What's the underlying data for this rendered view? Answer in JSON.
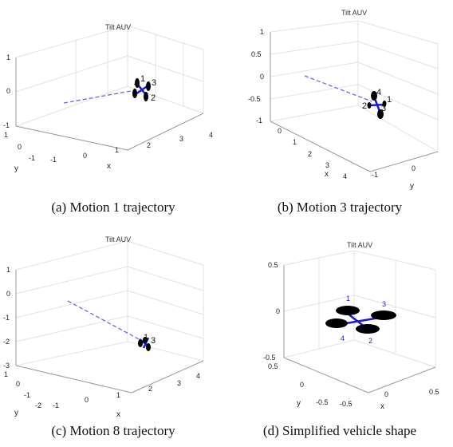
{
  "colors": {
    "arm": "#1a1adb",
    "rotor": "#000000",
    "trajectory": "#6b6bd8",
    "grid": "#e2e2e2",
    "axis": "#9a9a9a"
  },
  "chart_data": [
    {
      "type": "line3d",
      "title": "Tilt AUV",
      "caption": "(a) Motion 1 trajectory",
      "xlabel": "x",
      "ylabel": "y",
      "zlabel": "",
      "xticks": [
        "-1",
        "0",
        "1",
        "2",
        "3",
        "4"
      ],
      "yticks": [
        "-1",
        "0",
        "1"
      ],
      "zticks": [
        "-1",
        "0",
        "1"
      ],
      "rotor_labels": [
        "1",
        "2",
        "3",
        "4"
      ],
      "trajectory": {
        "x": [
          -1,
          2.2
        ],
        "y": [
          0,
          0
        ],
        "z": [
          0,
          0
        ]
      }
    },
    {
      "type": "line3d",
      "title": "Tilt AUV",
      "caption": "(b) Motion 3 trajectory",
      "xlabel": "x",
      "ylabel": "y",
      "zlabel": "",
      "xticks": [
        "0",
        "1",
        "2",
        "3",
        "4"
      ],
      "yticks": [
        "-1",
        "0"
      ],
      "zticks": [
        "1",
        "0.5",
        "0",
        "-0.5",
        "-1"
      ],
      "rotor_labels": [
        "1",
        "2",
        "3",
        "4"
      ],
      "trajectory": {
        "x": [
          0,
          2.2
        ],
        "y": [
          -0.5,
          -0.5
        ],
        "z": [
          0,
          0
        ]
      }
    },
    {
      "type": "line3d",
      "title": "Tilt AUV",
      "caption": "(c) Motion 8 trajectory",
      "xlabel": "x",
      "ylabel": "y",
      "zlabel": "",
      "xticks": [
        "-1",
        "0",
        "1",
        "2",
        "3",
        "4"
      ],
      "yticks": [
        "-2",
        "-1",
        "0",
        "1"
      ],
      "zticks": [
        "1",
        "0",
        "-1",
        "-2",
        "-3"
      ],
      "rotor_labels": [
        "1",
        "3"
      ],
      "trajectory": {
        "x": [
          -1,
          2.2
        ],
        "y": [
          0,
          0
        ],
        "z": [
          0,
          -2
        ]
      }
    },
    {
      "type": "shape3d",
      "title": "Tilt AUV",
      "caption": "(d) Simplified vehicle shape",
      "xlabel": "x",
      "ylabel": "y",
      "zlabel": "",
      "xticks": [
        "-0.5",
        "0",
        "0.5"
      ],
      "yticks": [
        "-0.5",
        "0",
        "0.5"
      ],
      "zticks": [
        "0.5",
        "0",
        "-0.5"
      ],
      "rotor_labels": [
        "1",
        "2",
        "3",
        "4"
      ]
    }
  ]
}
